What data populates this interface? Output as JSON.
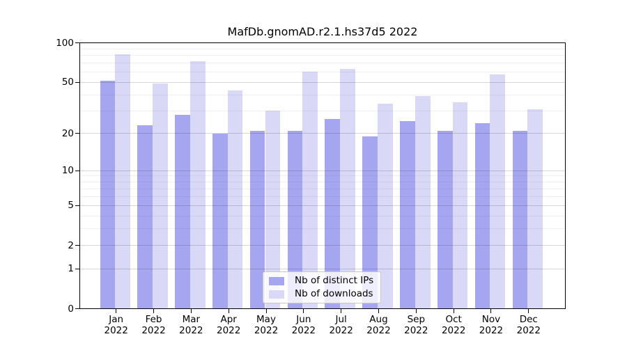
{
  "chart_data": {
    "type": "bar",
    "title": "MafDb.gnomAD.r2.1.hs37d5 2022",
    "categories": [
      "Jan",
      "Feb",
      "Mar",
      "Apr",
      "May",
      "Jun",
      "Jul",
      "Aug",
      "Sep",
      "Oct",
      "Nov",
      "Dec"
    ],
    "x_tick_year": "2022",
    "series": [
      {
        "name": "Nb of distinct IPs",
        "color": "#a6a6f0",
        "values": [
          51,
          23,
          28,
          20,
          21,
          21,
          26,
          19,
          25,
          21,
          24,
          21
        ]
      },
      {
        "name": "Nb of downloads",
        "color": "#d9d9f7",
        "values": [
          82,
          49,
          72,
          43,
          30,
          60,
          63,
          34,
          39,
          35,
          57,
          31
        ]
      }
    ],
    "yscale": "log1p",
    "ylim": [
      0,
      100
    ],
    "yticks_major": [
      100,
      50,
      20,
      10,
      5,
      2,
      1,
      0
    ],
    "yticks_minor": [
      3,
      4,
      6,
      7,
      8,
      9,
      30,
      40,
      60,
      70,
      80,
      90
    ],
    "grid": true,
    "legend_position": "lower-center",
    "colors": {
      "axis": "#000000",
      "major_grid": "rgba(0,0,0,0.16)",
      "minor_grid": "rgba(0,0,0,0.06)",
      "background": "#ffffff"
    }
  }
}
